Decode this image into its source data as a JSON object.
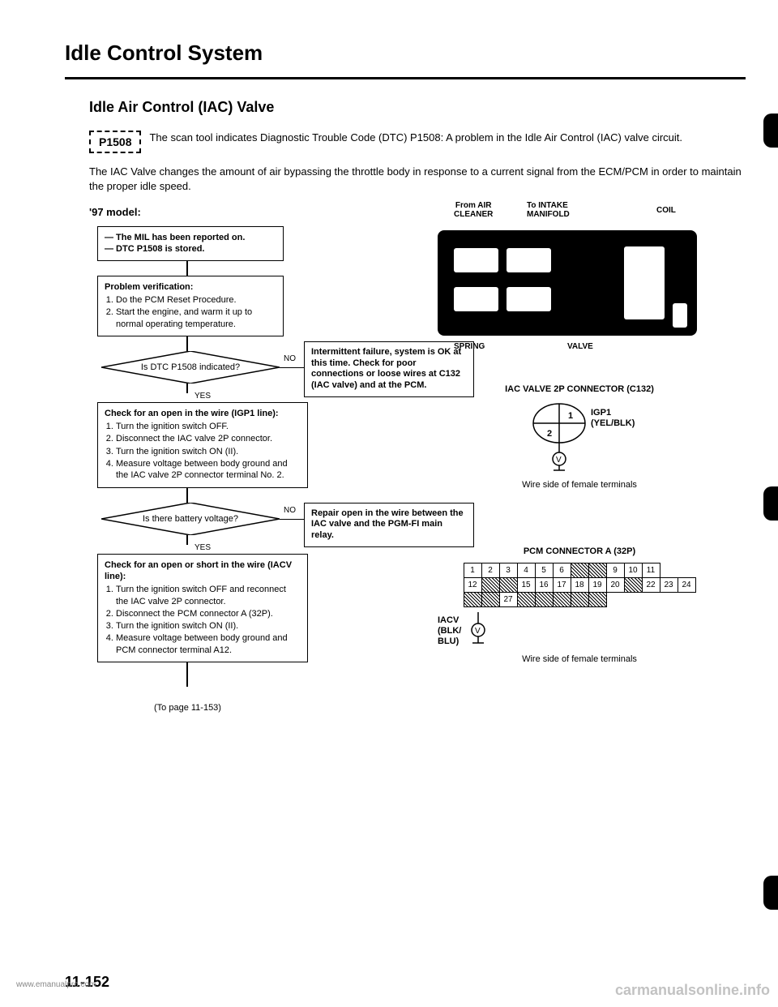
{
  "page": {
    "title": "Idle Control System",
    "section_title": "Idle Air Control (IAC) Valve",
    "dtc_code": "P1508",
    "dtc_desc": "The scan tool indicates Diagnostic Trouble Code (DTC) P1508: A problem in the Idle Air Control (IAC) valve circuit.",
    "body_text": "The IAC Valve changes the amount of air bypassing the throttle body in response to a current signal from the ECM/PCM in order to maintain the proper idle speed.",
    "page_number": "11-152",
    "watermark_left": "www.emanualpro.com",
    "watermark_right": "carmanualsonline.info"
  },
  "flowchart": {
    "model_label": "'97 model:",
    "start": {
      "line1": "— The MIL has been reported on.",
      "line2": "— DTC P1508 is stored."
    },
    "verification": {
      "title": "Problem verification:",
      "steps": [
        "Do the PCM Reset Procedure.",
        "Start the engine, and warm it up to normal operating temperature."
      ]
    },
    "decision1": {
      "question": "Is DTC P1508 indicated?",
      "yes": "YES",
      "no": "NO",
      "no_result": "Intermittent failure, system is OK at this time. Check for poor connections or loose wires at C132 (IAC valve) and at the PCM."
    },
    "check1": {
      "title": "Check for an open in the wire (IGP1 line):",
      "steps": [
        "Turn the ignition switch OFF.",
        "Disconnect the IAC valve 2P connector.",
        "Turn the ignition switch ON (II).",
        "Measure voltage between body ground and the IAC valve 2P connector terminal No. 2."
      ]
    },
    "decision2": {
      "question": "Is there battery voltage?",
      "yes": "YES",
      "no": "NO",
      "no_result": "Repair open in the wire between the IAC valve and the PGM-FI main relay."
    },
    "check2": {
      "title": "Check for an open or short in the wire (IACV line):",
      "steps": [
        "Turn the ignition switch OFF and reconnect the IAC valve 2P connector.",
        "Disconnect the PCM connector A (32P).",
        "Turn the ignition switch ON (II).",
        "Measure voltage between body ground and PCM connector terminal A12."
      ]
    },
    "continue": "(To page 11-153)"
  },
  "valve_diagram": {
    "labels": {
      "from_air": "From AIR\nCLEANER",
      "to_intake": "To INTAKE\nMANIFOLD",
      "coil": "COIL",
      "spring": "SPRING",
      "valve": "VALVE"
    }
  },
  "iac_connector": {
    "title": "IAC VALVE 2P CONNECTOR (C132)",
    "pin1": "1",
    "pin2": "2",
    "igp1": "IGP1",
    "color": "(YEL/BLK)",
    "caption": "Wire side of female terminals"
  },
  "pcm_connector": {
    "title": "PCM CONNECTOR A (32P)",
    "iacv_label": "IACV\n(BLK/\nBLU)",
    "caption": "Wire side of female terminals",
    "row1": [
      "1",
      "2",
      "3",
      "4",
      "5",
      "6",
      "/",
      "/",
      "9",
      "10",
      "11"
    ],
    "row2": [
      "12",
      "/",
      "/",
      "15",
      "16",
      "17",
      "18",
      "19",
      "20",
      "/",
      "22",
      "23",
      "24"
    ],
    "row3": [
      "/",
      "/",
      "27",
      "/",
      "/",
      "/",
      "/",
      "/"
    ],
    "shaded_row1": [
      6,
      7
    ],
    "shaded_row2": [
      1,
      2,
      9
    ],
    "shaded_row3": [
      0,
      1,
      3,
      4,
      5,
      6,
      7
    ]
  },
  "style": {
    "colors": {
      "text": "#000000",
      "background": "#ffffff",
      "border": "#000000",
      "watermark": "#888888"
    },
    "fonts": {
      "title_size": 26,
      "section_size": 18,
      "body_size": 13,
      "flowchart_size": 11,
      "label_size": 10
    }
  }
}
